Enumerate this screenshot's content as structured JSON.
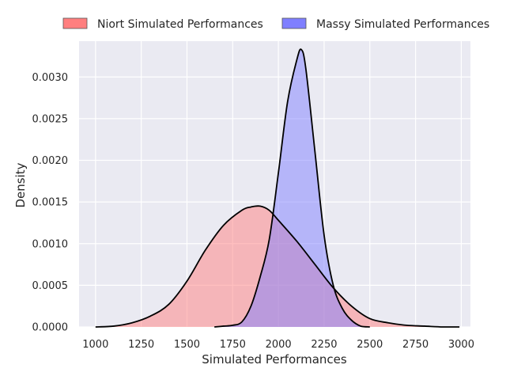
{
  "chart_data": {
    "type": "area",
    "xlabel": "Simulated Performances",
    "ylabel": "Density",
    "xlim": [
      910,
      3050
    ],
    "ylim": [
      0,
      0.00343
    ],
    "x_ticks": [
      1000,
      1250,
      1500,
      1750,
      2000,
      2250,
      2500,
      2750,
      3000
    ],
    "x_tick_labels": [
      "1000",
      "1250",
      "1500",
      "1750",
      "2000",
      "2250",
      "2500",
      "2750",
      "3000"
    ],
    "y_ticks": [
      0,
      0.0005,
      0.001,
      0.0015,
      0.002,
      0.0025,
      0.003
    ],
    "y_tick_labels": [
      "0.0000",
      "0.0005",
      "0.0010",
      "0.0015",
      "0.0020",
      "0.0025",
      "0.0030"
    ],
    "grid": true,
    "legend_placement": "top-center-outside",
    "background": "#eaeaf2",
    "series": [
      {
        "name": "Niort Simulated Performances",
        "color": "#ff7f7f",
        "fill_opacity": 0.5,
        "x": [
          1000,
          1100,
          1200,
          1300,
          1400,
          1500,
          1600,
          1700,
          1800,
          1850,
          1900,
          1950,
          2000,
          2100,
          2200,
          2300,
          2400,
          2500,
          2600,
          2700,
          2800,
          2900,
          2990
        ],
        "y": [
          0.0,
          1e-05,
          5e-05,
          0.00013,
          0.00027,
          0.00055,
          0.00092,
          0.00122,
          0.0014,
          0.00144,
          0.00145,
          0.0014,
          0.00128,
          0.00103,
          0.00075,
          0.00047,
          0.00025,
          0.0001,
          5e-05,
          2e-05,
          1e-05,
          0.0,
          0.0
        ]
      },
      {
        "name": "Massy Simulated Performances",
        "color": "#7f7fff",
        "fill_opacity": 0.5,
        "x": [
          1650,
          1700,
          1750,
          1800,
          1850,
          1900,
          1950,
          2000,
          2050,
          2100,
          2125,
          2150,
          2200,
          2250,
          2300,
          2350,
          2400,
          2450,
          2500
        ],
        "y": [
          0.0,
          1e-05,
          2e-05,
          6e-05,
          0.00025,
          0.0006,
          0.00105,
          0.00185,
          0.0027,
          0.0032,
          0.00333,
          0.0031,
          0.0021,
          0.0011,
          0.0005,
          0.00022,
          8e-05,
          1e-05,
          0.0
        ]
      }
    ]
  }
}
